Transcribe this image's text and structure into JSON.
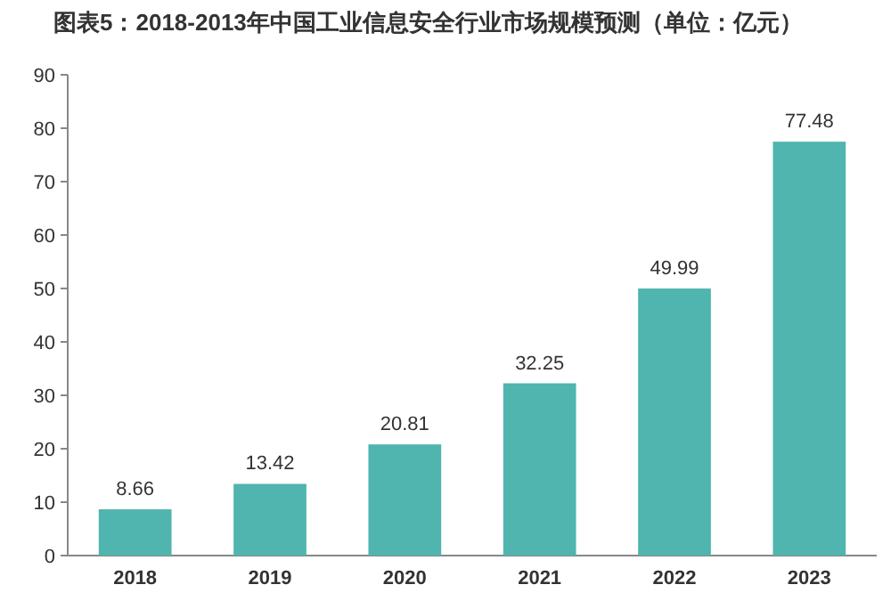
{
  "chart_data": {
    "type": "bar",
    "title": "图表5：2018-2013年中国工业信息安全行业市场规模预测（单位：亿元）",
    "categories": [
      "2018",
      "2019",
      "2020",
      "2021",
      "2022",
      "2023"
    ],
    "values": [
      8.66,
      13.42,
      20.81,
      32.25,
      49.99,
      77.48
    ],
    "color": "#4fb5ae",
    "ylim": [
      0,
      90
    ],
    "yticks": [
      0,
      10,
      20,
      30,
      40,
      50,
      60,
      70,
      80,
      90
    ],
    "data_labels": true
  }
}
